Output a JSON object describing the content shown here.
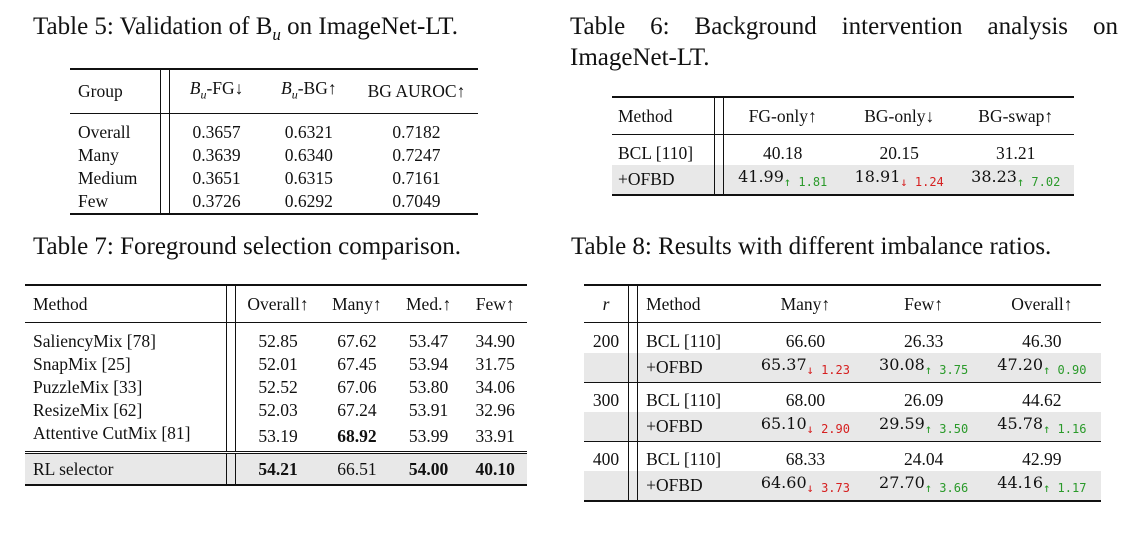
{
  "t5": {
    "caption": "Table 5: Validation of B",
    "caption_sub": "u",
    "caption_tail": " on ImageNet-LT.",
    "headers": [
      "Group",
      "B",
      "-FG↓",
      "B",
      "-BG↑",
      "BG AUROC↑"
    ],
    "sub": "u",
    "rows": [
      [
        "Overall",
        "0.3657",
        "0.6321",
        "0.7182"
      ],
      [
        "Many",
        "0.3639",
        "0.6340",
        "0.7247"
      ],
      [
        "Medium",
        "0.3651",
        "0.6315",
        "0.7161"
      ],
      [
        "Few",
        "0.3726",
        "0.6292",
        "0.7049"
      ]
    ]
  },
  "t6": {
    "caption": "Table 6: Background intervention analysis on ImageNet-LT.",
    "headers": [
      "Method",
      "FG-only↑",
      "BG-only↓",
      "BG-swap↑"
    ],
    "row1": [
      "BCL [110]",
      "40.18",
      "20.15",
      "31.21"
    ],
    "row2": {
      "method": "+OFBD",
      "v1": "41.99",
      "d1": "↑ 1.81",
      "v2": "18.91",
      "d2": "↓ 1.24",
      "v3": "38.23",
      "d3": "↑ 7.02"
    }
  },
  "t7": {
    "caption": "Table 7: Foreground selection comparison.",
    "headers": [
      "Method",
      "Overall↑",
      "Many↑",
      "Med.↑",
      "Few↑"
    ],
    "rows": [
      [
        "SaliencyMix [78]",
        "52.85",
        "67.62",
        "53.47",
        "34.90"
      ],
      [
        "SnapMix [25]",
        "52.01",
        "67.45",
        "53.94",
        "31.75"
      ],
      [
        "PuzzleMix [33]",
        "52.52",
        "67.06",
        "53.80",
        "34.06"
      ],
      [
        "ResizeMix [62]",
        "52.03",
        "67.24",
        "53.91",
        "32.96"
      ],
      [
        "Attentive CutMix [81]",
        "53.19",
        "68.92",
        "53.99",
        "33.91"
      ]
    ],
    "final": [
      "RL selector",
      "54.21",
      "66.51",
      "54.00",
      "40.10"
    ]
  },
  "t8": {
    "caption": "Table 8: Results with different imbalance ratios.",
    "headers": [
      "r",
      "Method",
      "Many↑",
      "Few↑",
      "Overall↑"
    ],
    "groups": [
      {
        "r": "200",
        "base": [
          "BCL [110]",
          "66.60",
          "26.33",
          "46.30"
        ],
        "ofbd": {
          "method": "+OFBD",
          "v1": "65.37",
          "d1": "↓ 1.23",
          "v2": "30.08",
          "d2": "↑ 3.75",
          "v3": "47.20",
          "d3": "↑ 0.90"
        }
      },
      {
        "r": "300",
        "base": [
          "BCL [110]",
          "68.00",
          "26.09",
          "44.62"
        ],
        "ofbd": {
          "method": "+OFBD",
          "v1": "65.10",
          "d1": "↓ 2.90",
          "v2": "29.59",
          "d2": "↑ 3.50",
          "v3": "45.78",
          "d3": "↑ 1.16"
        }
      },
      {
        "r": "400",
        "base": [
          "BCL [110]",
          "68.33",
          "24.04",
          "42.99"
        ],
        "ofbd": {
          "method": "+OFBD",
          "v1": "64.60",
          "d1": "↓ 3.73",
          "v2": "27.70",
          "d2": "↑ 3.66",
          "v3": "44.16",
          "d3": "↑ 1.17"
        }
      }
    ]
  }
}
